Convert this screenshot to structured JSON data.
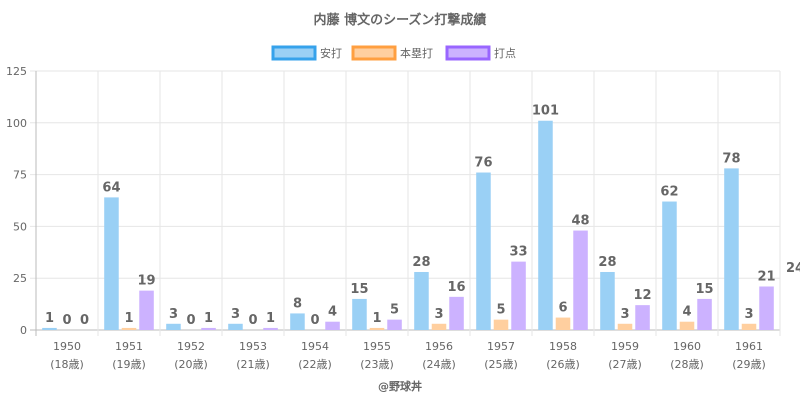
{
  "chart_data": {
    "type": "bar",
    "title": "内藤 博文のシーズン打撃成績",
    "categories": [
      "1950",
      "1951",
      "1952",
      "1953",
      "1954",
      "1955",
      "1956",
      "1957",
      "1958",
      "1959",
      "1960",
      "1961"
    ],
    "sublabels": [
      "(18歳)",
      "(19歳)",
      "(20歳)",
      "(21歳)",
      "(22歳)",
      "(23歳)",
      "(24歳)",
      "(25歳)",
      "(26歳)",
      "(27歳)",
      "(28歳)",
      "(29歳)"
    ],
    "series": [
      {
        "name": "安打",
        "values": [
          1,
          64,
          3,
          3,
          8,
          15,
          28,
          76,
          101,
          28,
          62,
          78
        ],
        "fill": "#9ad0f5",
        "stroke": "#36a2eb"
      },
      {
        "name": "本塁打",
        "values": [
          0,
          1,
          0,
          0,
          0,
          1,
          3,
          5,
          6,
          3,
          4,
          3
        ],
        "fill": "#ffcf9f",
        "stroke": "#ff9f40"
      },
      {
        "name": "打点",
        "values": [
          0,
          19,
          1,
          1,
          4,
          5,
          16,
          33,
          48,
          12,
          15,
          21
        ],
        "fill": "#ccb2ff",
        "stroke": "#9966ff"
      }
    ],
    "ylim": [
      0,
      125
    ],
    "yticks": [
      0,
      25,
      50,
      75,
      100,
      125
    ],
    "legend_position": "top-center",
    "grid": true,
    "xlabel": "",
    "ylabel": "",
    "overflow_label": "24",
    "credit": "@野球丼"
  }
}
